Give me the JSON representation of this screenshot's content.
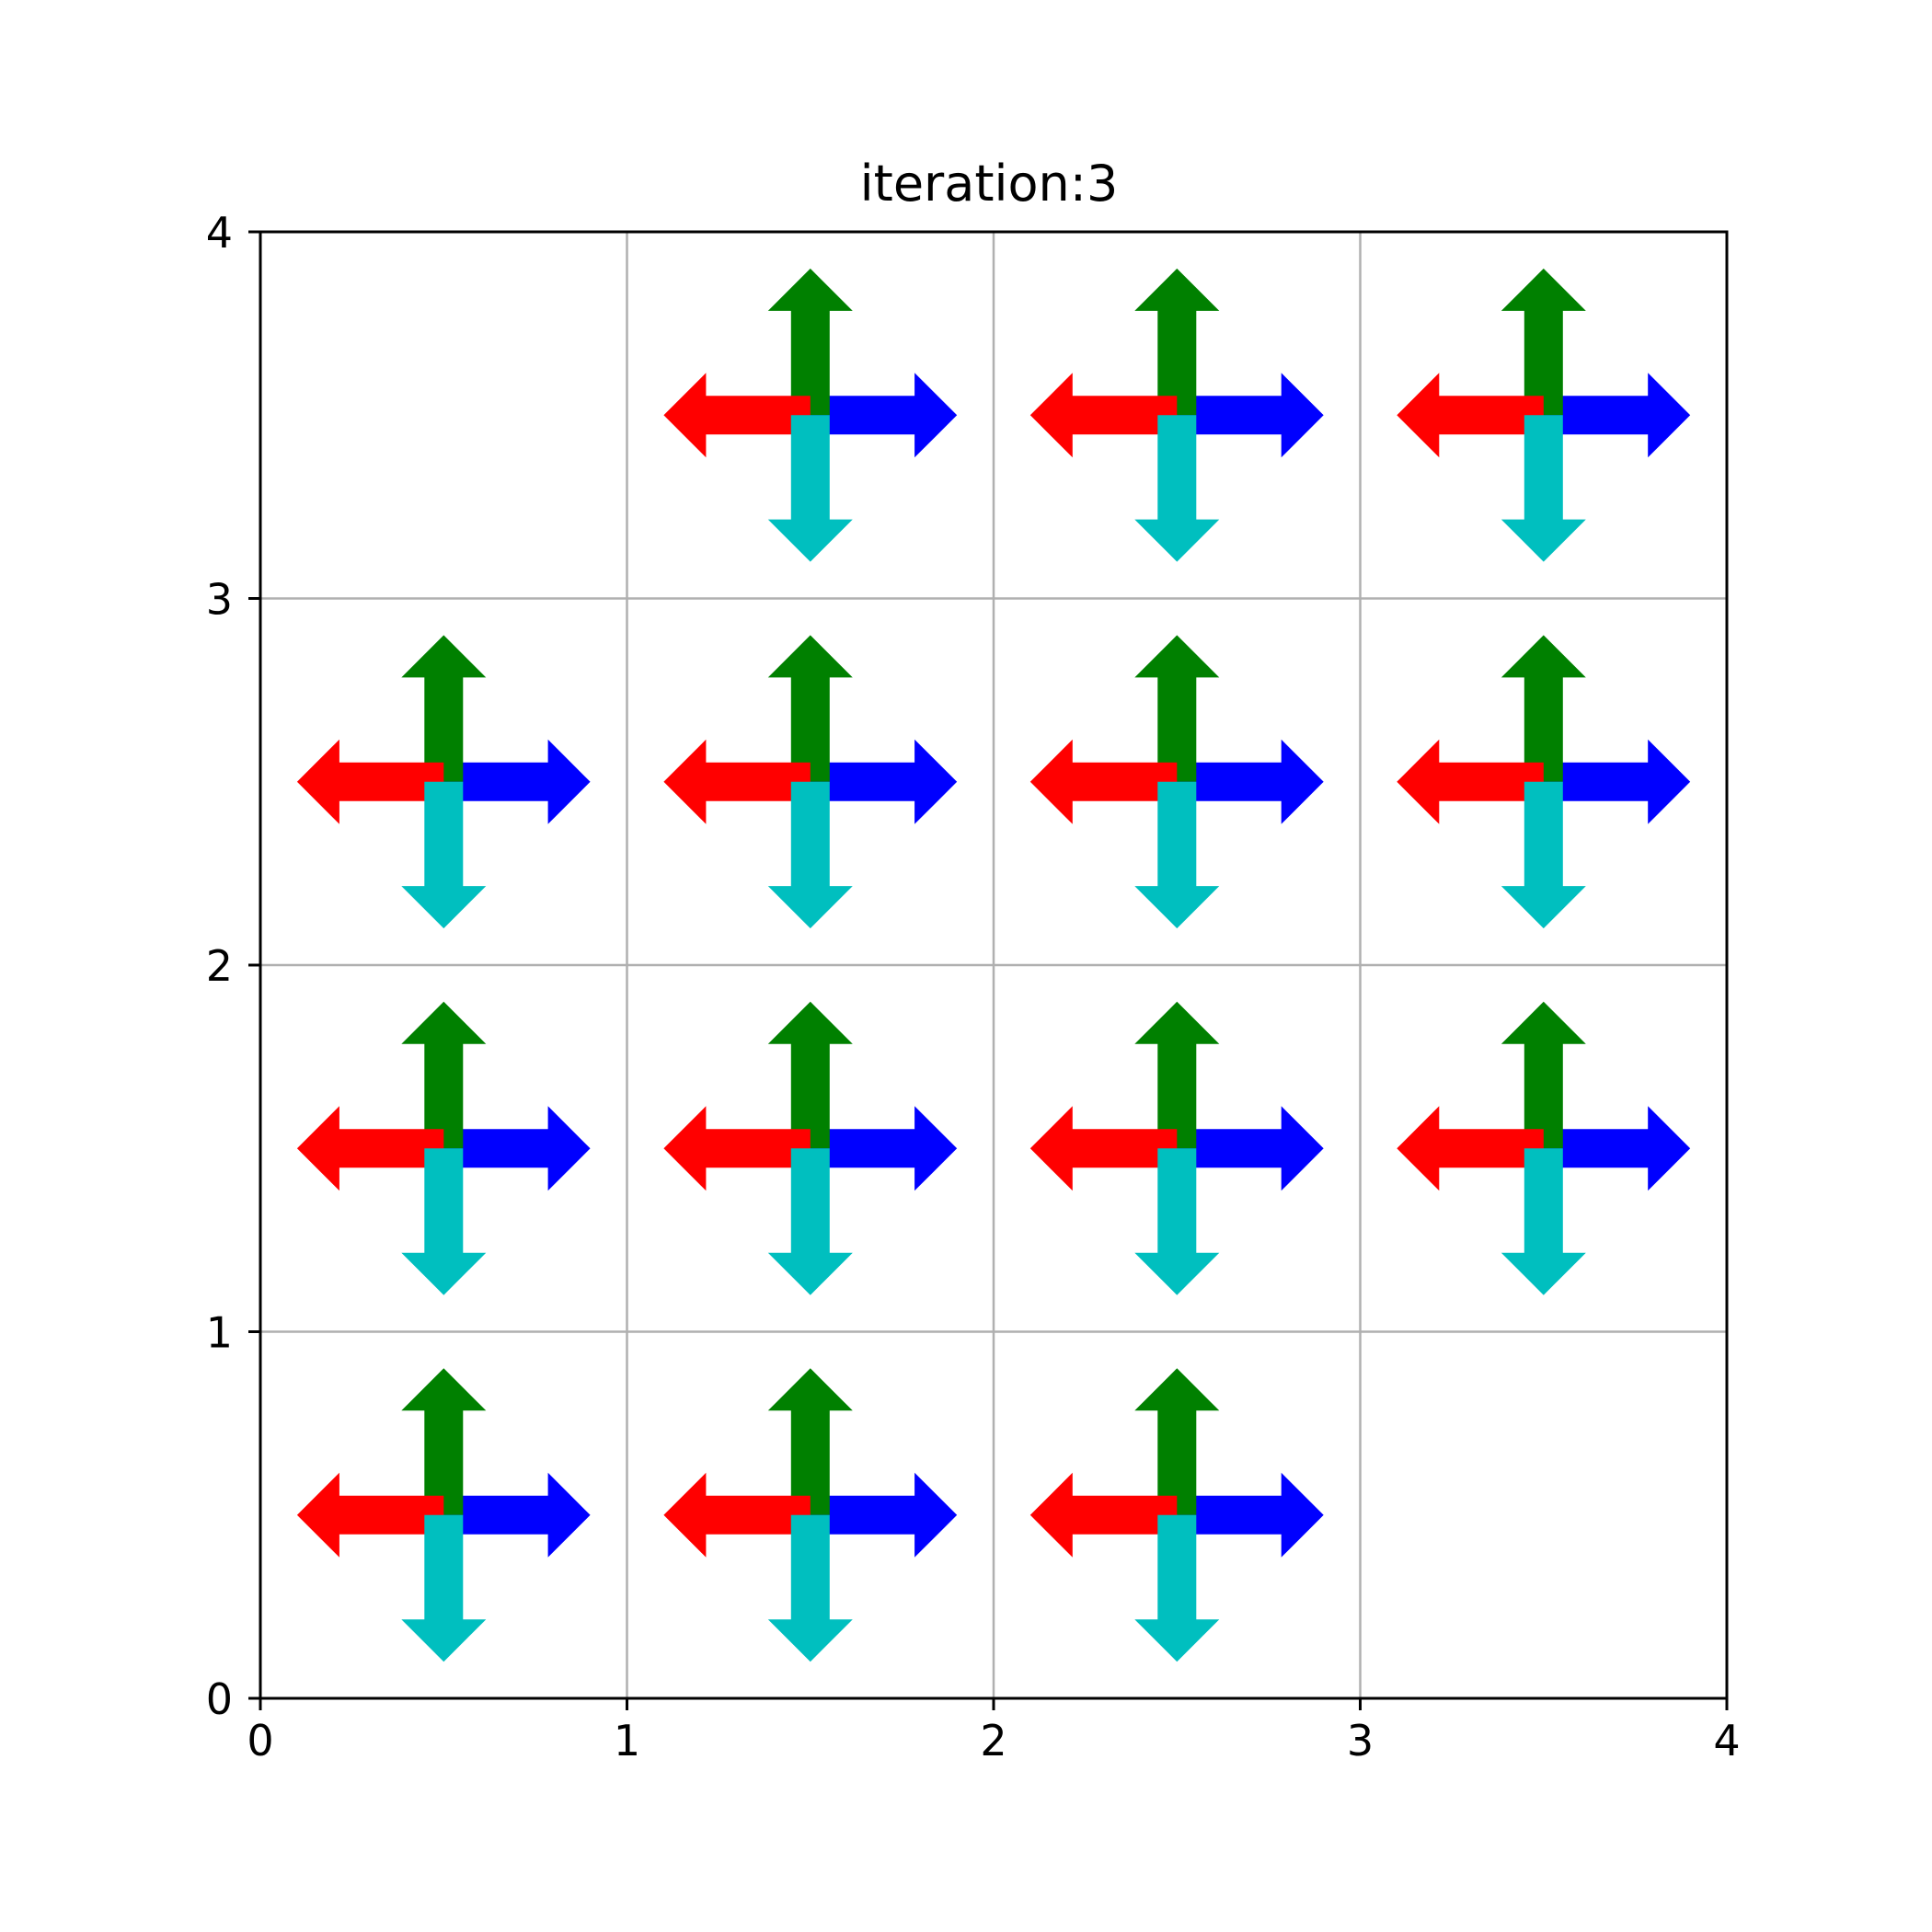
{
  "chart_data": {
    "type": "quiver",
    "title": "iteration:3",
    "xlabel": "",
    "ylabel": "",
    "xlim": [
      0,
      4
    ],
    "ylim": [
      0,
      4
    ],
    "xticks": [
      "0",
      "1",
      "2",
      "3",
      "4"
    ],
    "yticks": [
      "0",
      "1",
      "2",
      "3",
      "4"
    ],
    "grid": true,
    "arrow_length": 0.4,
    "directions": [
      {
        "key": "right",
        "dx": 1,
        "dy": 0,
        "color": "#0000ff"
      },
      {
        "key": "up",
        "dx": 0,
        "dy": 1,
        "color": "#008000"
      },
      {
        "key": "left",
        "dx": -1,
        "dy": 0,
        "color": "#ff0000"
      },
      {
        "key": "down",
        "dx": 0,
        "dy": -1,
        "color": "#00bfbf"
      }
    ],
    "cells": [
      {
        "x": 1.5,
        "y": 3.5
      },
      {
        "x": 2.5,
        "y": 3.5
      },
      {
        "x": 3.5,
        "y": 3.5
      },
      {
        "x": 0.5,
        "y": 2.5
      },
      {
        "x": 1.5,
        "y": 2.5
      },
      {
        "x": 2.5,
        "y": 2.5
      },
      {
        "x": 3.5,
        "y": 2.5
      },
      {
        "x": 0.5,
        "y": 1.5
      },
      {
        "x": 1.5,
        "y": 1.5
      },
      {
        "x": 2.5,
        "y": 1.5
      },
      {
        "x": 3.5,
        "y": 1.5
      },
      {
        "x": 0.5,
        "y": 0.5
      },
      {
        "x": 1.5,
        "y": 0.5
      },
      {
        "x": 2.5,
        "y": 0.5
      }
    ],
    "empty_cells": [
      {
        "x": 0.5,
        "y": 3.5
      },
      {
        "x": 3.5,
        "y": 0.5
      }
    ]
  }
}
